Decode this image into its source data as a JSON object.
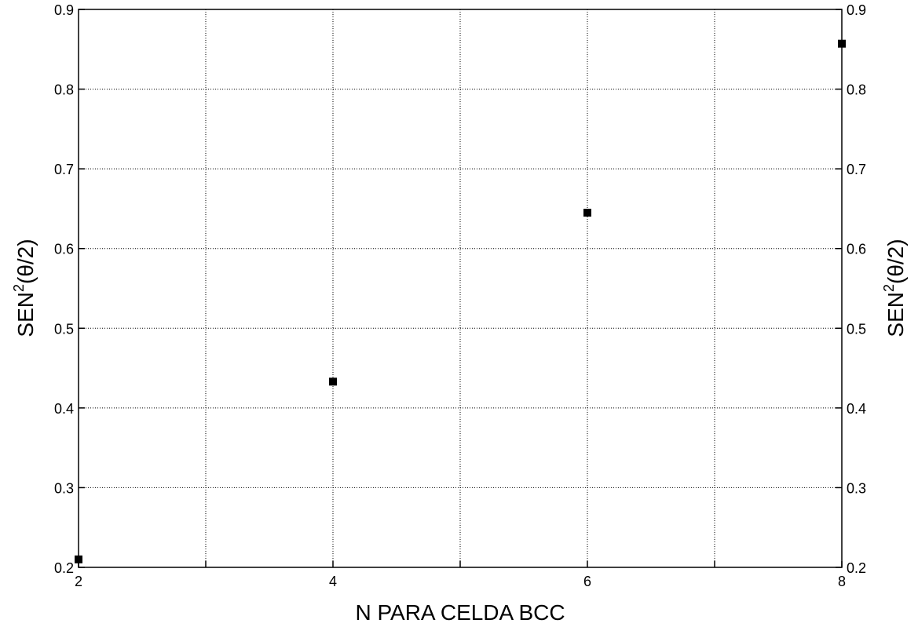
{
  "chart_data": {
    "type": "scatter",
    "xlabel": "N  PARA CELDA BCC",
    "ylabel": {
      "prefix": "SEN",
      "superscript": "2",
      "suffix": "(θ/2)"
    },
    "right_ylabel": {
      "prefix": "SEN",
      "superscript": "2",
      "suffix": "(θ/2)"
    },
    "xlim": [
      2,
      8
    ],
    "ylim": [
      0.2,
      0.9
    ],
    "x_ticks": [
      2,
      4,
      6,
      8
    ],
    "x_tick_labels": [
      "2",
      "4",
      "6",
      "8"
    ],
    "x_minor_ticks": [
      3,
      5,
      7
    ],
    "y_ticks": [
      0.2,
      0.3,
      0.4,
      0.5,
      0.6,
      0.7,
      0.8,
      0.9
    ],
    "y_tick_labels": [
      "0.2",
      "0.3",
      "0.4",
      "0.5",
      "0.6",
      "0.7",
      "0.8",
      "0.9"
    ],
    "grid": true,
    "marker": "square",
    "marker_color": "#000000",
    "series": [
      {
        "x": [
          2,
          4,
          6,
          8
        ],
        "y": [
          0.21,
          0.433,
          0.645,
          0.857
        ]
      }
    ]
  }
}
